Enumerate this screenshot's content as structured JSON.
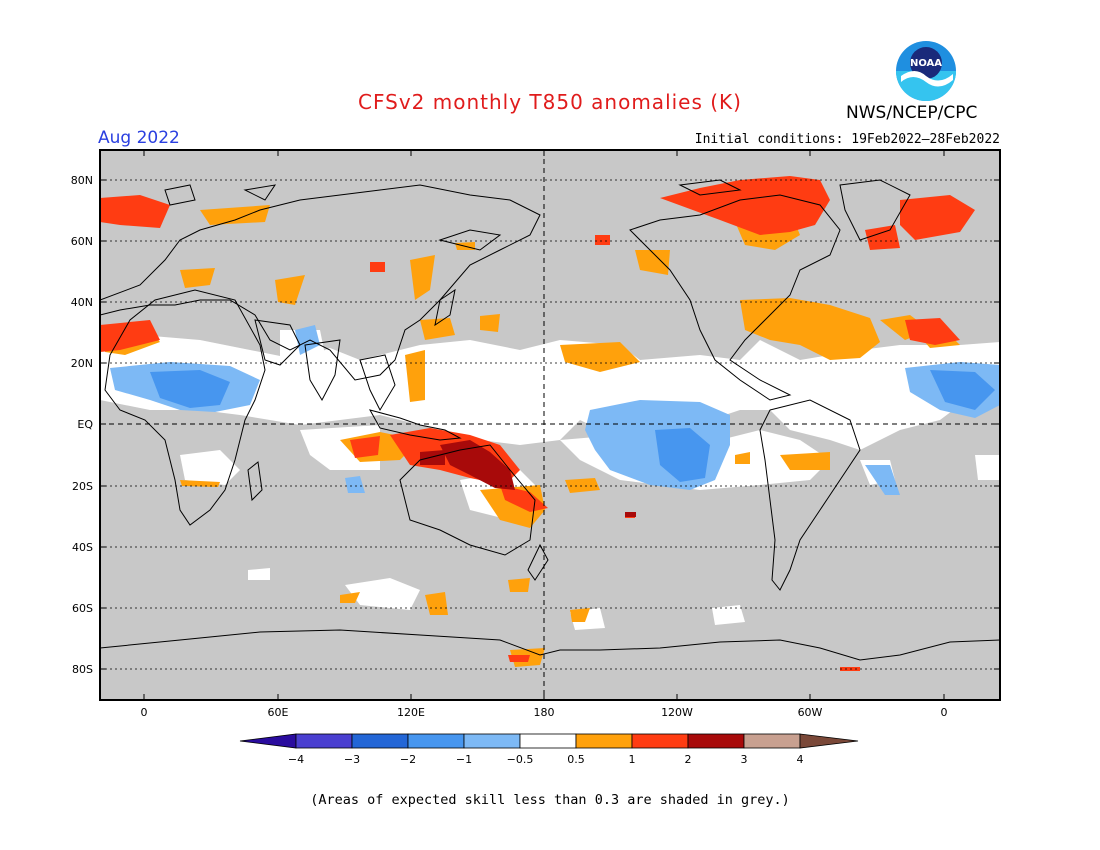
{
  "header": {
    "title": "CFSv2 monthly T850 anomalies (K)",
    "month": "Aug 2022",
    "initial_conditions": "Initial conditions: 19Feb2022–28Feb2022",
    "agency": "NWS/NCEP/CPC",
    "logo_text": "NOAA"
  },
  "map": {
    "lat_labels": [
      "80N",
      "60N",
      "40N",
      "20N",
      "EQ",
      "20S",
      "40S",
      "60S",
      "80S"
    ],
    "lon_labels": [
      "0",
      "60E",
      "120E",
      "180",
      "120W",
      "60W",
      "0"
    ],
    "colors": {
      "skill_grey": "#c8c8c8",
      "neutral": "#ffffff",
      "land_outline": "#000000"
    }
  },
  "colorbar": {
    "ticks": [
      "−4",
      "−3",
      "−2",
      "−1",
      "−0.5",
      "0.5",
      "1",
      "2",
      "3",
      "4"
    ],
    "colors": [
      "#2a0c9e",
      "#4a3fd0",
      "#2366d6",
      "#4796ef",
      "#7db9f5",
      "#ffffff",
      "#ffa10c",
      "#ff3c12",
      "#a80a0a",
      "#c8a090",
      "#7a4838"
    ]
  },
  "caption": "(Areas of expected skill less than 0.3 are shaded in grey.)"
}
